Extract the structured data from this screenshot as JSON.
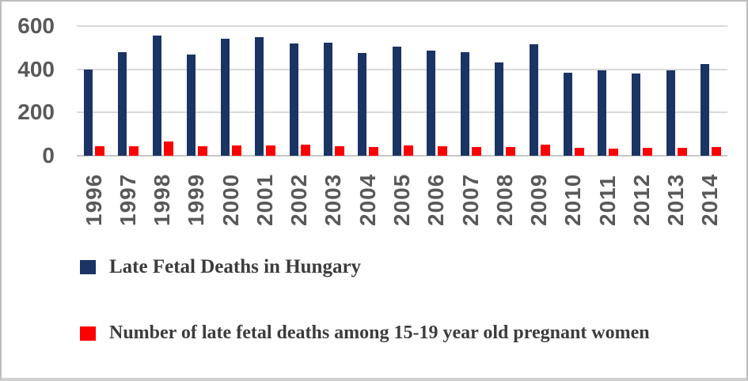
{
  "chart_data": {
    "type": "bar",
    "categories": [
      "1996",
      "1997",
      "1998",
      "1999",
      "2000",
      "2001",
      "2002",
      "2003",
      "2004",
      "2005",
      "2006",
      "2007",
      "2008",
      "2009",
      "2010",
      "2011",
      "2012",
      "2013",
      "2014"
    ],
    "series": [
      {
        "name": "Late Fetal Deaths in Hungary",
        "color": "#1a3464",
        "values": [
          400,
          480,
          555,
          470,
          540,
          550,
          520,
          525,
          475,
          505,
          485,
          480,
          430,
          515,
          385,
          395,
          380,
          395,
          425
        ]
      },
      {
        "name": "Number of late fetal deaths among 15-19 year old pregnant women",
        "color": "#fe0000",
        "values": [
          45,
          45,
          65,
          45,
          48,
          47,
          52,
          45,
          40,
          46,
          43,
          40,
          42,
          52,
          36,
          33,
          38,
          35,
          42
        ]
      }
    ],
    "ylim": [
      0,
      600
    ],
    "yticks": [
      0,
      200,
      400,
      600
    ],
    "grid": "horizontal",
    "legend_position": "bottom-left",
    "colors": {
      "axis_text": "#595959",
      "gridline": "#d9d9d9",
      "baseline": "#c6c6c6",
      "legend_text": "#3c3c3c"
    }
  }
}
